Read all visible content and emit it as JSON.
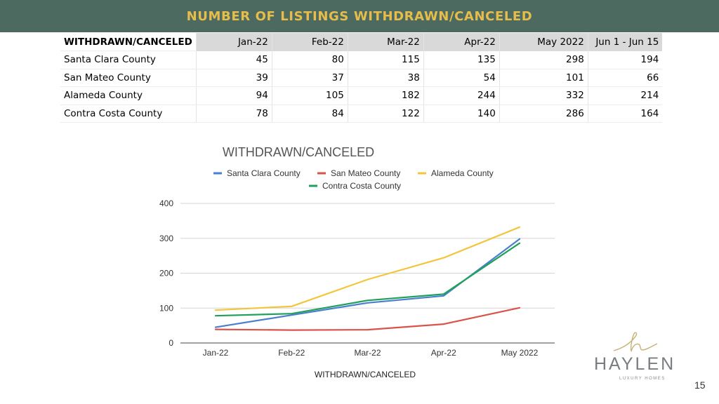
{
  "header": {
    "title": "NUMBER OF LISTINGS WITHDRAWN/CANCELED"
  },
  "table": {
    "corner": "WITHDRAWN/CANCELED",
    "columns": [
      "Jan-22",
      "Feb-22",
      "Mar-22",
      "Apr-22",
      "May 2022",
      "Jun 1 - Jun 15"
    ],
    "rows": [
      {
        "label": "Santa Clara County",
        "values": [
          "45",
          "80",
          "115",
          "135",
          "298",
          "194"
        ]
      },
      {
        "label": "San Mateo County",
        "values": [
          "39",
          "37",
          "38",
          "54",
          "101",
          "66"
        ]
      },
      {
        "label": "Alameda County",
        "values": [
          "94",
          "105",
          "182",
          "244",
          "332",
          "214"
        ]
      },
      {
        "label": "Contra Costa County",
        "values": [
          "78",
          "84",
          "122",
          "140",
          "286",
          "164"
        ]
      }
    ]
  },
  "chart_data": {
    "type": "line",
    "title": "WITHDRAWN/CANCELED",
    "xlabel": "WITHDRAWN/CANCELED",
    "ylabel": "",
    "categories": [
      "Jan-22",
      "Feb-22",
      "Mar-22",
      "Apr-22",
      "May 2022"
    ],
    "ylim": [
      0,
      400
    ],
    "yticks": [
      0,
      100,
      200,
      300,
      400
    ],
    "grid": true,
    "legend": "top",
    "series": [
      {
        "name": "Santa Clara County",
        "color": "#4a7fcf",
        "values": [
          45,
          80,
          115,
          135,
          298
        ]
      },
      {
        "name": "San Mateo County",
        "color": "#d9534a",
        "values": [
          39,
          37,
          38,
          54,
          101
        ]
      },
      {
        "name": "Alameda County",
        "color": "#f2c53d",
        "values": [
          94,
          105,
          182,
          244,
          332
        ]
      },
      {
        "name": "Contra Costa County",
        "color": "#20a05a",
        "values": [
          78,
          84,
          122,
          140,
          286
        ]
      }
    ]
  },
  "logo": {
    "name": "HAYLEN",
    "tagline": "LUXURY HOMES",
    "mark_color": "#c8b27a"
  },
  "footer": {
    "page_number": "15"
  }
}
